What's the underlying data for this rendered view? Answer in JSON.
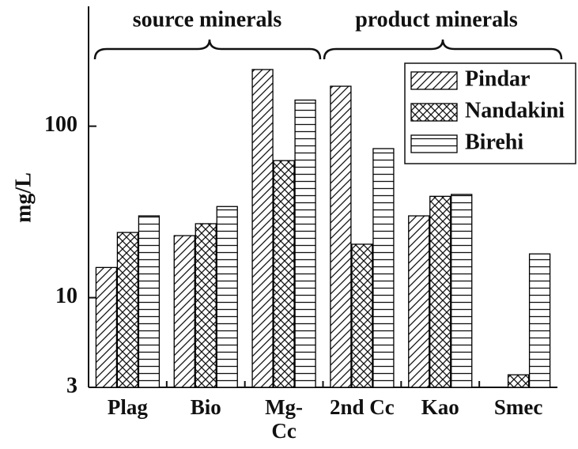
{
  "chart_data": {
    "type": "bar",
    "y_label": "mg/L",
    "log_scale": true,
    "annotations": [
      "source minerals",
      "product minerals"
    ],
    "categories": [
      "Plag",
      "Bio",
      "Mg- Cc",
      "2nd Cc",
      "Kao",
      "Smec"
    ],
    "series": [
      {
        "name": "Pindar",
        "color": "#000000",
        "hatch": "diagonal",
        "values": [
          15,
          23,
          214,
          171,
          30,
          null
        ]
      },
      {
        "name": "Nandakini",
        "color": "#000000",
        "hatch": "cross",
        "values": [
          24,
          27,
          63,
          20.5,
          39,
          3.55
        ]
      },
      {
        "name": "Birehi",
        "color": "#000000",
        "hatch": "horizontal",
        "values": [
          30,
          34,
          142,
          74,
          40,
          18
        ]
      }
    ],
    "ylim": [
      3,
      500
    ],
    "yticks": [
      3,
      10,
      100
    ],
    "legend": "upper right"
  }
}
